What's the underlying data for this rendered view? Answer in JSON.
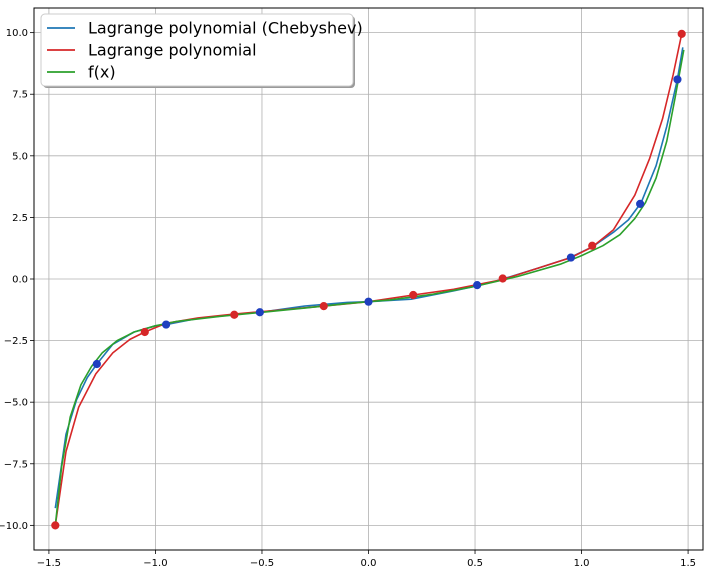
{
  "chart_data": {
    "type": "line",
    "title": "",
    "xlabel": "",
    "ylabel": "",
    "xlim": [
      -1.57,
      1.57
    ],
    "ylim": [
      -11.0,
      11.0
    ],
    "grid": true,
    "legend_position": "top-left",
    "x_ticks": [
      -1.5,
      -1.0,
      -0.5,
      0.0,
      0.5,
      1.0,
      1.5
    ],
    "x_tick_labels": [
      "−1.5",
      "−1.0",
      "−0.5",
      "0.0",
      "0.5",
      "1.0",
      "1.5"
    ],
    "y_ticks": [
      10.0,
      7.5,
      5.0,
      2.5,
      0.0,
      -2.5,
      -5.0,
      -7.5,
      -10.0
    ],
    "y_tick_labels": [
      "10.0",
      "7.5",
      "5.0",
      "2.5",
      "0.0",
      "−2.5",
      "−5.0",
      "−7.5",
      "−10.0"
    ],
    "series": [
      {
        "name": "Lagrange polynomial (Chebyshev)",
        "color": "#1f77b4",
        "x": [
          -1.47,
          -1.42,
          -1.37,
          -1.32,
          -1.275,
          -1.2,
          -1.1,
          -1.0,
          -0.95,
          -0.8,
          -0.6,
          -0.5,
          -0.3,
          -0.1,
          0.0,
          0.2,
          0.4,
          0.51,
          0.6,
          0.8,
          0.94,
          1.05,
          1.15,
          1.22,
          1.28,
          1.35,
          1.4,
          1.45,
          1.475
        ],
        "y": [
          -9.3,
          -6.3,
          -4.9,
          -4.0,
          -3.45,
          -2.65,
          -2.15,
          -1.9,
          -1.85,
          -1.6,
          -1.42,
          -1.34,
          -1.1,
          -0.95,
          -0.92,
          -0.82,
          -0.48,
          -0.28,
          -0.08,
          0.45,
          0.85,
          1.3,
          1.9,
          2.4,
          3.1,
          4.6,
          6.2,
          8.1,
          9.4
        ]
      },
      {
        "name": "Lagrange polynomial",
        "color": "#d62728",
        "x": [
          -1.47,
          -1.42,
          -1.36,
          -1.28,
          -1.2,
          -1.12,
          -1.05,
          -0.95,
          -0.8,
          -0.63,
          -0.4,
          -0.21,
          0.0,
          0.21,
          0.4,
          0.63,
          0.8,
          0.95,
          1.05,
          1.15,
          1.25,
          1.32,
          1.38,
          1.43,
          1.47
        ],
        "y": [
          -10.0,
          -7.0,
          -5.2,
          -3.85,
          -3.0,
          -2.45,
          -2.15,
          -1.8,
          -1.58,
          -1.42,
          -1.25,
          -1.1,
          -0.92,
          -0.65,
          -0.42,
          -0.02,
          0.45,
          0.87,
          1.3,
          2.0,
          3.4,
          4.9,
          6.5,
          8.3,
          9.95
        ]
      },
      {
        "name": "f(x)",
        "color": "#2ca02c",
        "x": [
          -1.47,
          -1.44,
          -1.4,
          -1.35,
          -1.3,
          -1.25,
          -1.18,
          -1.1,
          -1.0,
          -0.9,
          -0.7,
          -0.5,
          -0.3,
          -0.1,
          0.0,
          0.1,
          0.3,
          0.5,
          0.7,
          0.9,
          1.0,
          1.1,
          1.18,
          1.25,
          1.3,
          1.35,
          1.4,
          1.44,
          1.48
        ],
        "y": [
          -10.0,
          -7.6,
          -5.6,
          -4.3,
          -3.55,
          -3.0,
          -2.5,
          -2.15,
          -1.9,
          -1.72,
          -1.52,
          -1.35,
          -1.18,
          -1.0,
          -0.92,
          -0.85,
          -0.62,
          -0.3,
          0.1,
          0.6,
          0.95,
          1.35,
          1.8,
          2.45,
          3.1,
          4.1,
          5.6,
          7.4,
          9.3
        ]
      }
    ],
    "node_points": [
      {
        "x": -1.47,
        "y": -10.0,
        "color": "#d62728"
      },
      {
        "x": -1.05,
        "y": -2.15,
        "color": "#d62728"
      },
      {
        "x": -0.63,
        "y": -1.45,
        "color": "#d62728"
      },
      {
        "x": -0.21,
        "y": -1.1,
        "color": "#d62728"
      },
      {
        "x": 0.21,
        "y": -0.65,
        "color": "#d62728"
      },
      {
        "x": 0.63,
        "y": 0.02,
        "color": "#d62728"
      },
      {
        "x": 1.05,
        "y": 1.35,
        "color": "#d62728"
      },
      {
        "x": 1.47,
        "y": 9.95,
        "color": "#d62728"
      },
      {
        "x": -1.275,
        "y": -3.45,
        "color": "#1f3fbf"
      },
      {
        "x": -0.95,
        "y": -1.85,
        "color": "#1f3fbf"
      },
      {
        "x": -0.51,
        "y": -1.35,
        "color": "#1f3fbf"
      },
      {
        "x": 0.0,
        "y": -0.92,
        "color": "#1f3fbf"
      },
      {
        "x": 0.51,
        "y": -0.25,
        "color": "#1f3fbf"
      },
      {
        "x": 0.95,
        "y": 0.87,
        "color": "#1f3fbf"
      },
      {
        "x": 1.275,
        "y": 3.05,
        "color": "#1f3fbf"
      },
      {
        "x": 1.45,
        "y": 8.1,
        "color": "#1f3fbf"
      }
    ]
  }
}
